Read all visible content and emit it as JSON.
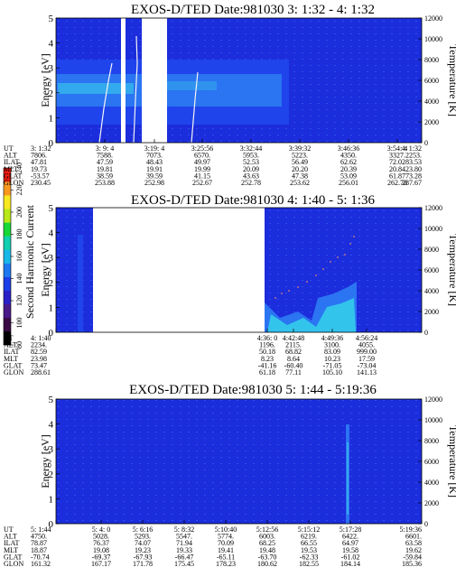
{
  "chart_data": [
    {
      "type": "heatmap",
      "title": "EXOS-D/TED   Date:981030  3: 1:32 - 4: 1:32",
      "ylabel": "Energy [eV]",
      "y2label": "Temperature [K]",
      "ylim": [
        0,
        5
      ],
      "y2lim": [
        0,
        12000
      ],
      "yticks": [
        "0",
        "1",
        "2",
        "3",
        "4",
        "5"
      ],
      "y2ticks": [
        "0",
        "2000",
        "4000",
        "6000",
        "8000",
        "10000",
        "12000"
      ],
      "colorbar": {
        "label": "Second Harmonic Current",
        "range": [
          80,
          240
        ],
        "ticks": [
          "80",
          "100",
          "120",
          "140",
          "160",
          "180",
          "200",
          "220",
          "240"
        ]
      },
      "footer": {
        "labels": [
          "UT",
          "ALT",
          "ILAT",
          "MLT",
          "GLAT",
          "GLON"
        ],
        "columns": [
          [
            "3: 1:32",
            "7806.",
            "47.81",
            "19.73",
            "-53.57",
            "230.45"
          ],
          [
            "3: 9: 4",
            "7588.",
            "47.59",
            "19.81",
            "38.59",
            "253.88"
          ],
          [
            "3:19: 4",
            "7073.",
            "48.43",
            "19.91",
            "39.59",
            "252.98"
          ],
          [
            "3:25:56",
            "6570.",
            "49.97",
            "19.99",
            "41.15",
            "252.67"
          ],
          [
            "3:32:44",
            "5953.",
            "52.53",
            "20.09",
            "43.63",
            "252.78"
          ],
          [
            "3:39:32",
            "5223.",
            "56.49",
            "20.20",
            "47.38",
            "253.62"
          ],
          [
            "3:46:36",
            "4350.",
            "62.62",
            "20.39",
            "53.09",
            "256.01"
          ],
          [
            "3:54: 4",
            "3327.",
            "72.02",
            "20.84",
            "61.87",
            "262.78"
          ],
          [
            "4: 1:32",
            "2253.",
            "83.53",
            "23.80",
            "73.28",
            "287.67"
          ]
        ]
      }
    },
    {
      "type": "heatmap",
      "title": "EXOS-D/TED   Date:981030  4: 1:40 - 5: 1:36",
      "ylabel": "Energy [eV]",
      "y2label": "Temperature [K]",
      "ylim": [
        0,
        5
      ],
      "y2lim": [
        0,
        12000
      ],
      "yticks": [
        "0",
        "1",
        "2",
        "3",
        "4",
        "5"
      ],
      "y2ticks": [
        "0",
        "2000",
        "4000",
        "6000",
        "8000",
        "10000",
        "12000"
      ],
      "footer": {
        "labels": [
          "UT",
          "ALT",
          "ILAT",
          "MLT",
          "GLAT",
          "GLON"
        ],
        "columns": [
          [
            "4: 1:40",
            "2234.",
            "82.59",
            "23.98",
            "73.47",
            "288.61"
          ],
          [
            "4:36: 0",
            "1196.",
            "50.18",
            "8.23",
            "-41.16",
            "61.18"
          ],
          [
            "4:42:48",
            "2115.",
            "68.82",
            "8.64",
            "-60.40",
            "77.11"
          ],
          [
            "4:49:36",
            "3100.",
            "83.09",
            "10.23",
            "-71.05",
            "105.10"
          ],
          [
            "4:56:24",
            "4055.",
            "999.00",
            "17.59",
            "-73.04",
            "141.13"
          ]
        ]
      }
    },
    {
      "type": "heatmap",
      "title": "EXOS-D/TED   Date:981030  5: 1:44 - 5:19:36",
      "ylabel": "Energy [eV]",
      "y2label": "Temperature [K]",
      "ylim": [
        0,
        5
      ],
      "y2lim": [
        0,
        12000
      ],
      "yticks": [
        "0",
        "1",
        "2",
        "3",
        "4",
        "5"
      ],
      "y2ticks": [
        "0",
        "2000",
        "4000",
        "6000",
        "8000",
        "10000",
        "12000"
      ],
      "footer": {
        "labels": [
          "UT",
          "ALT",
          "ILAT",
          "MLT",
          "GLAT",
          "GLON"
        ],
        "columns": [
          [
            "5: 1:44",
            "4750.",
            "78.87",
            "18.87",
            "-70.74",
            "161.32"
          ],
          [
            "5: 4: 0",
            "5028.",
            "76.37",
            "19.08",
            "-69.37",
            "167.17"
          ],
          [
            "5: 6:16",
            "5293.",
            "74.07",
            "19.23",
            "-67.93",
            "171.78"
          ],
          [
            "5: 8:32",
            "5547.",
            "71.94",
            "19.33",
            "-66.47",
            "175.45"
          ],
          [
            "5:10:40",
            "5774.",
            "70.09",
            "19.41",
            "-65.11",
            "178.23"
          ],
          [
            "5:12:56",
            "6003.",
            "68.25",
            "19.48",
            "-63.70",
            "180.62"
          ],
          [
            "5:15:12",
            "6219.",
            "66.55",
            "19.53",
            "-62.33",
            "182.55"
          ],
          [
            "5:17:28",
            "6422.",
            "64.97",
            "19.58",
            "-61.02",
            "184.14"
          ],
          [
            "5:19:36",
            "6601.",
            "63.58",
            "19.62",
            "-59.84",
            "185.36"
          ]
        ]
      }
    }
  ]
}
